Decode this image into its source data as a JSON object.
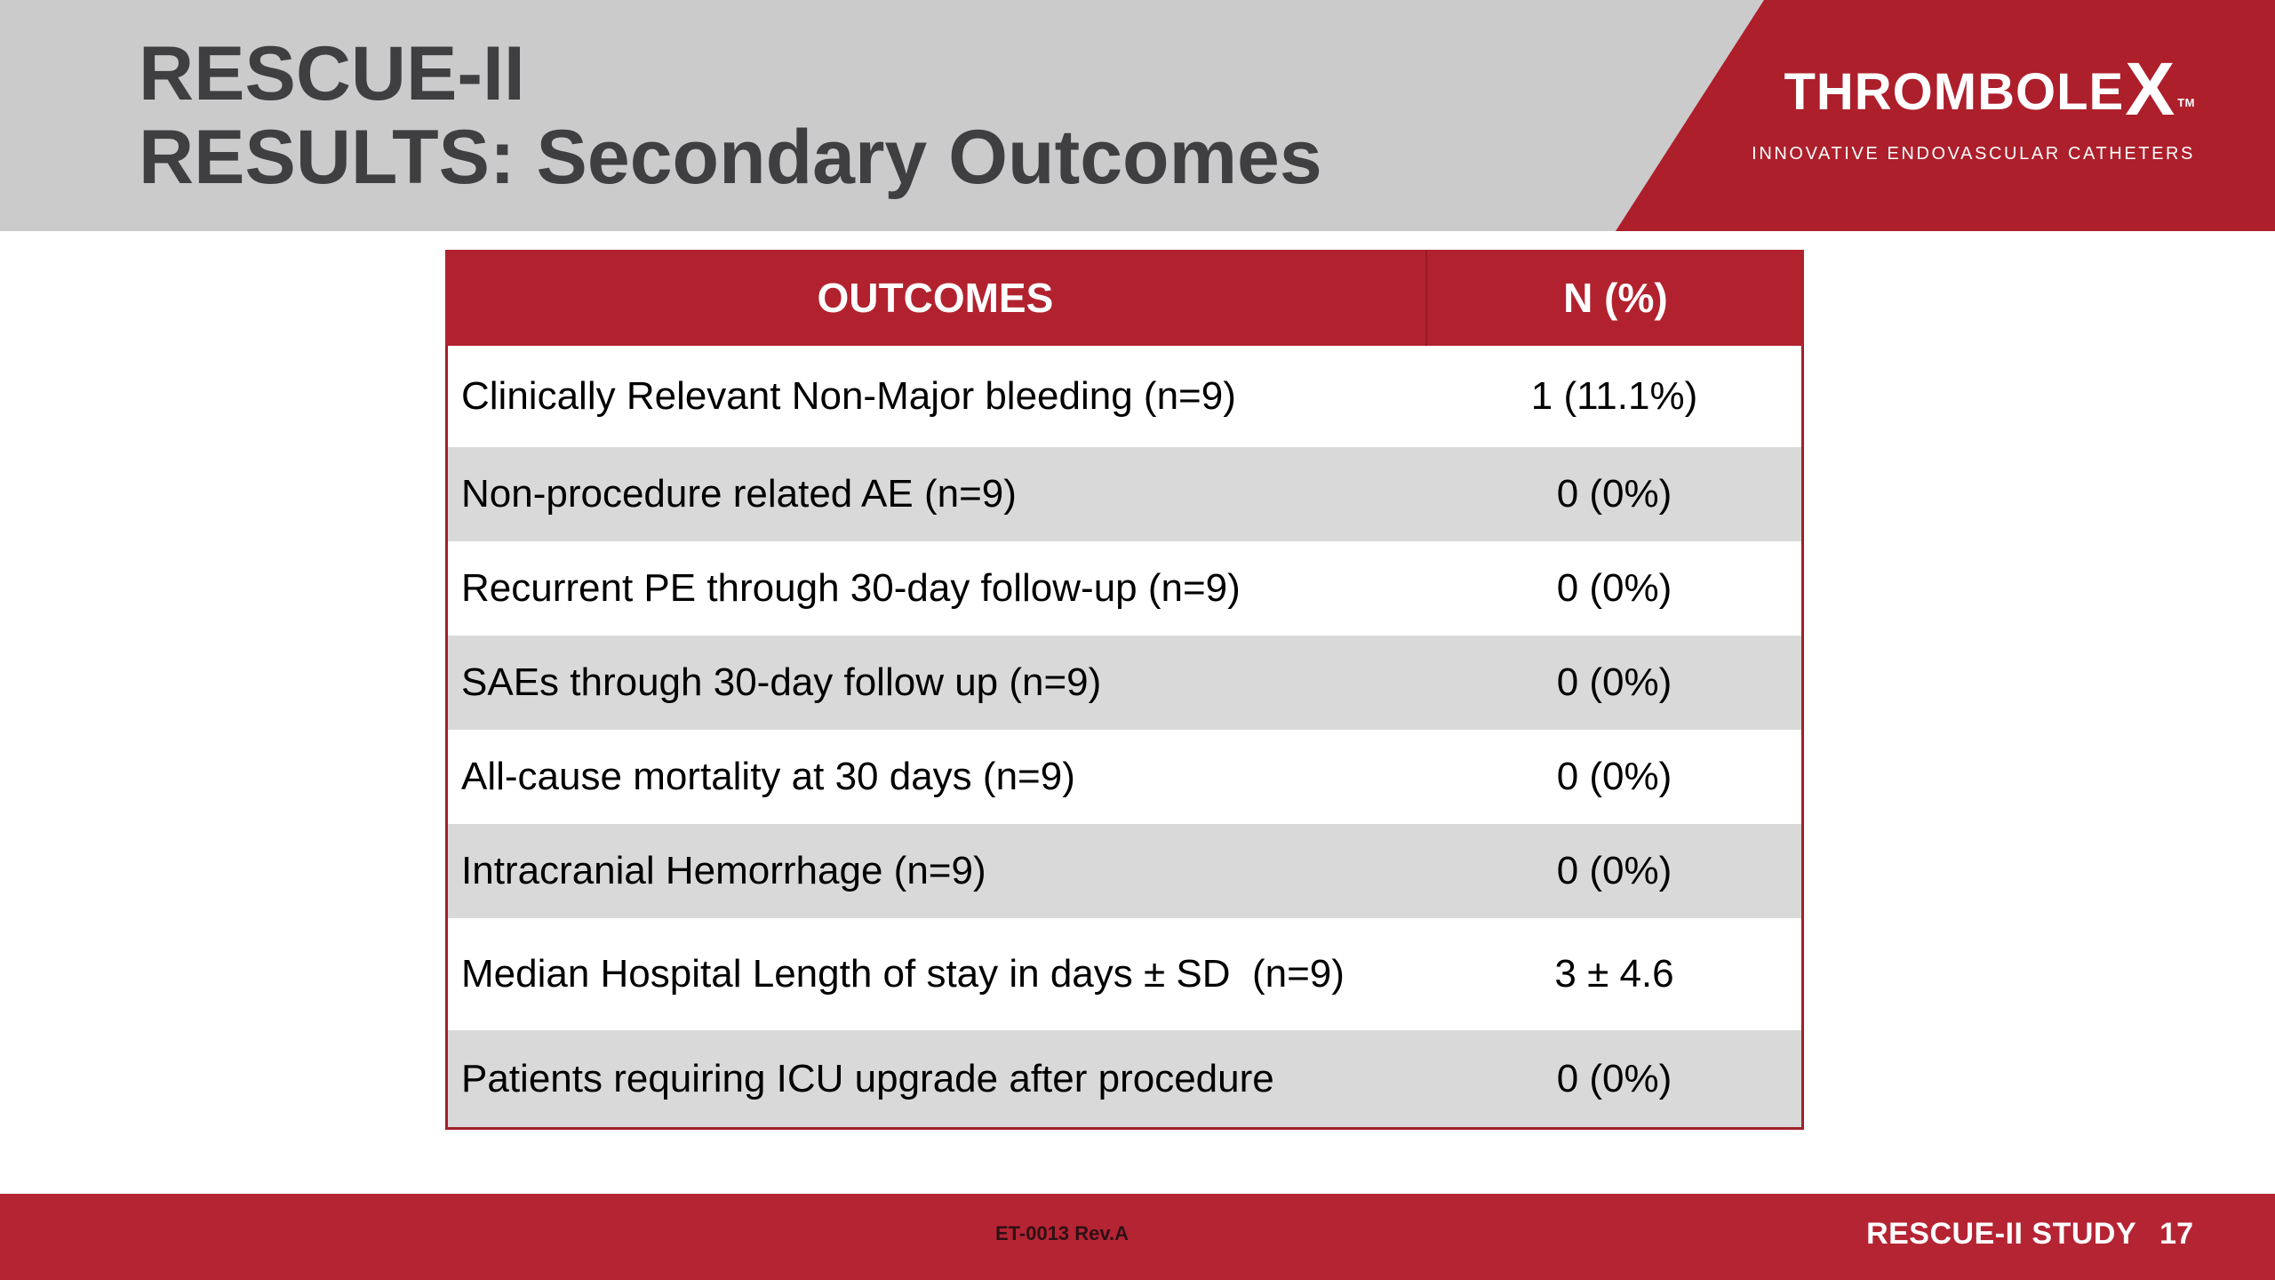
{
  "slide": {
    "title_line1": "RESCUE-II",
    "title_line2": "RESULTS: Secondary Outcomes"
  },
  "logo": {
    "brand_prefix": "THROMBOLE",
    "brand_x": "X",
    "trademark": "TM",
    "tagline": "INNOVATIVE ENDOVASCULAR CATHETERS"
  },
  "table": {
    "headers": [
      "OUTCOMES",
      "N (%)"
    ],
    "rows": [
      {
        "outcome": "Clinically Relevant Non-Major bleeding (n=9)",
        "value": "1 (11.1%)"
      },
      {
        "outcome": "Non-procedure related AE (n=9)",
        "value": "0 (0%)"
      },
      {
        "outcome": "Recurrent PE through 30-day follow-up (n=9)",
        "value": "0 (0%)"
      },
      {
        "outcome": "SAEs through 30-day follow up (n=9)",
        "value": "0 (0%)"
      },
      {
        "outcome": "All-cause mortality at 30 days (n=9)",
        "value": "0 (0%)"
      },
      {
        "outcome": "Intracranial Hemorrhage (n=9)",
        "value": "0 (0%)"
      },
      {
        "outcome": "Median Hospital Length of stay in days ± SD  (n=9)",
        "value": "3 ± 4.6"
      },
      {
        "outcome": "Patients requiring ICU upgrade after procedure",
        "value": "0 (0%)"
      }
    ]
  },
  "footer": {
    "doc_ref": "ET-0013 Rev.A",
    "study_label": "RESCUE-II STUDY",
    "page_number": "17"
  },
  "colors": {
    "banner_red": "#ad1f2b",
    "header_red": "#b2222e",
    "footer_red": "#b52433",
    "row_gray": "#d9d9d9",
    "band_gray": "#cccbcc",
    "title_gray": "#3f3f42",
    "border_red": "#a02129"
  }
}
